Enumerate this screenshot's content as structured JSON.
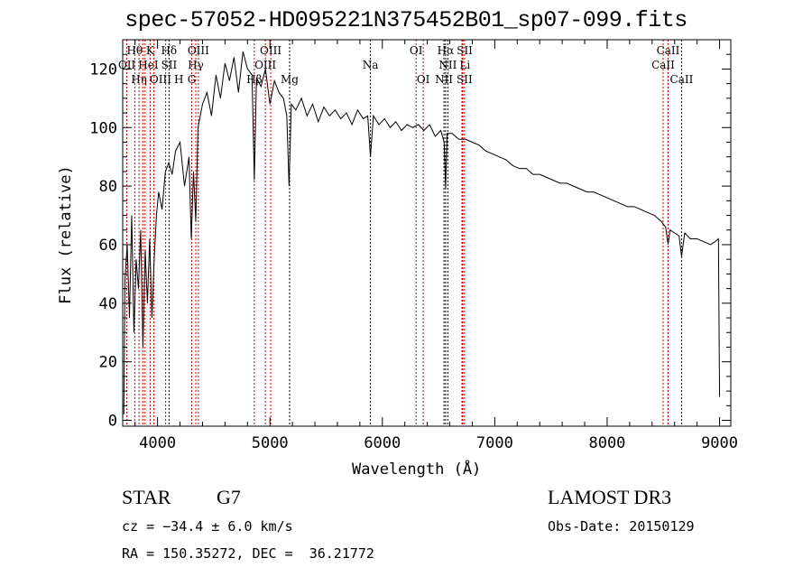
{
  "chart_data": {
    "type": "line",
    "title": "spec-57052-HD095221N375452B01_sp07-099.fits",
    "xlabel": "Wavelength (Å)",
    "ylabel": "Flux (relative)",
    "xlim": [
      3690,
      9100
    ],
    "ylim": [
      -2,
      130
    ],
    "xticks": [
      4000,
      5000,
      6000,
      7000,
      8000,
      9000
    ],
    "yticks": [
      0,
      20,
      40,
      60,
      80,
      100,
      120
    ],
    "grid": false,
    "series": [
      {
        "name": "spectrum",
        "x": [
          3700,
          3710,
          3730,
          3750,
          3770,
          3790,
          3810,
          3830,
          3850,
          3870,
          3890,
          3910,
          3930,
          3950,
          3970,
          3990,
          4010,
          4040,
          4070,
          4100,
          4130,
          4160,
          4200,
          4240,
          4280,
          4300,
          4320,
          4340,
          4360,
          4400,
          4440,
          4480,
          4520,
          4560,
          4600,
          4640,
          4680,
          4720,
          4760,
          4800,
          4840,
          4861,
          4880,
          4920,
          4960,
          5000,
          5040,
          5080,
          5120,
          5150,
          5170,
          5190,
          5230,
          5280,
          5330,
          5380,
          5430,
          5480,
          5530,
          5580,
          5630,
          5680,
          5730,
          5780,
          5830,
          5870,
          5894,
          5920,
          5970,
          6020,
          6070,
          6120,
          6170,
          6220,
          6270,
          6320,
          6370,
          6420,
          6470,
          6520,
          6550,
          6563,
          6576,
          6620,
          6680,
          6740,
          6800,
          6860,
          6920,
          6980,
          7040,
          7100,
          7160,
          7220,
          7280,
          7340,
          7400,
          7460,
          7520,
          7580,
          7640,
          7700,
          7760,
          7820,
          7880,
          7940,
          8000,
          8060,
          8120,
          8180,
          8240,
          8300,
          8360,
          8420,
          8480,
          8520,
          8542,
          8560,
          8600,
          8640,
          8662,
          8690,
          8740,
          8800,
          8860,
          8920,
          8960,
          8990,
          9000
        ],
        "y": [
          2,
          48,
          60,
          35,
          70,
          30,
          55,
          45,
          65,
          25,
          58,
          40,
          62,
          35,
          55,
          70,
          78,
          72,
          85,
          88,
          84,
          92,
          95,
          80,
          90,
          62,
          85,
          68,
          100,
          108,
          112,
          104,
          118,
          110,
          122,
          116,
          124,
          112,
          126,
          120,
          118,
          82,
          117,
          114,
          120,
          108,
          116,
          112,
          110,
          104,
          80,
          108,
          106,
          110,
          104,
          108,
          102,
          107,
          104,
          106,
          103,
          105,
          101,
          106,
          103,
          104,
          90,
          104,
          101,
          103,
          100,
          102,
          99,
          101,
          100,
          101,
          99,
          101,
          97,
          99,
          95,
          79,
          98,
          98,
          96,
          96,
          95,
          94,
          92,
          91,
          90,
          89,
          87,
          86,
          86,
          84,
          84,
          83,
          82,
          81,
          81,
          80,
          79,
          78,
          78,
          77,
          76,
          75,
          74,
          73,
          73,
          72,
          71,
          70,
          68,
          66,
          60,
          65,
          64,
          63,
          56,
          64,
          62,
          62,
          61,
          60,
          61,
          62,
          8
        ]
      }
    ],
    "lines": [
      {
        "label": "Hθ",
        "wave": 3797,
        "row": 0,
        "color": "#cc0000"
      },
      {
        "label": "K",
        "wave": 3934,
        "row": 0,
        "color": "#cc0000"
      },
      {
        "label": "Hδ",
        "wave": 4102,
        "row": 0,
        "color": "#000000"
      },
      {
        "label": "OIII",
        "wave": 4363,
        "row": 0,
        "color": "#cc0000"
      },
      {
        "label": "OIII",
        "wave": 5007,
        "row": 0,
        "color": "#cc0000"
      },
      {
        "label": "OI",
        "wave": 6300,
        "row": 0,
        "color": "#cc0000"
      },
      {
        "label": "Hα",
        "wave": 6563,
        "row": 0,
        "color": "#000000"
      },
      {
        "label": "SII",
        "wave": 6716,
        "row": 0,
        "color": "#cc0000"
      },
      {
        "label": "CaII",
        "wave": 8542,
        "row": 0,
        "color": "#cc0000"
      },
      {
        "label": "OII",
        "wave": 3727,
        "row": 1,
        "color": "#cc0000"
      },
      {
        "label": "HeI",
        "wave": 3889,
        "row": 1,
        "color": "#cc0000"
      },
      {
        "label": "SII",
        "wave": 4072,
        "row": 1,
        "color": "#cc0000"
      },
      {
        "label": "Hγ",
        "wave": 4340,
        "row": 1,
        "color": "#cc0000"
      },
      {
        "label": "OIII",
        "wave": 4959,
        "row": 1,
        "color": "#cc0000"
      },
      {
        "label": "Na",
        "wave": 5894,
        "row": 1,
        "color": "#000000"
      },
      {
        "label": "NII",
        "wave": 6583,
        "row": 1,
        "color": "#000000"
      },
      {
        "label": "Li",
        "wave": 6708,
        "row": 1,
        "color": "#cc0000"
      },
      {
        "label": "CaII",
        "wave": 8498,
        "row": 1,
        "color": "#cc0000"
      },
      {
        "label": "OIII",
        "wave": 3869,
        "row": 2,
        "color": "#cc0000"
      },
      {
        "label": "Hη",
        "wave": 3835,
        "row": 2,
        "color": "#cc0000"
      },
      {
        "label": "H",
        "wave": 3968,
        "row": 2,
        "color": "#cc0000"
      },
      {
        "label": "G",
        "wave": 4304,
        "row": 2,
        "color": "#cc0000"
      },
      {
        "label": "Hβ",
        "wave": 4861,
        "row": 2,
        "color": "#cc0000"
      },
      {
        "label": "Mg",
        "wave": 5175,
        "row": 2,
        "color": "#000000"
      },
      {
        "label": "OI",
        "wave": 6364,
        "row": 2,
        "color": "#cc0000"
      },
      {
        "label": "NII",
        "wave": 6548,
        "row": 2,
        "color": "#000000"
      },
      {
        "label": "SII",
        "wave": 6731,
        "row": 2,
        "color": "#cc0000"
      },
      {
        "label": "CaII",
        "wave": 8662,
        "row": 2,
        "color": "#000000"
      }
    ]
  },
  "info": {
    "object_class": "STAR",
    "subclass": "G7",
    "survey": "LAMOST DR3",
    "cz": "cz = −34.4 ± 6.0 km/s",
    "obs_date": "Obs-Date: 20150129",
    "coords": "RA = 150.35272, DEC =  36.21772"
  }
}
